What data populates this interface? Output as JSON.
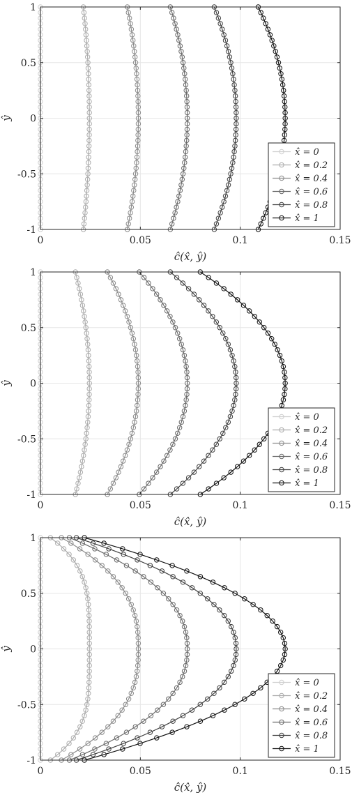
{
  "chart_data": [
    {
      "type": "line",
      "xlabel": "ĉ(x̂, ŷ)",
      "ylabel": "ŷ",
      "xlim": [
        0,
        0.15
      ],
      "ylim": [
        -1,
        1
      ],
      "xticks": [
        "0",
        "0.05",
        "0.1",
        "0.15"
      ],
      "yticks": [
        "-1",
        "-0.5",
        "0",
        "0.5",
        "1"
      ],
      "grid": true,
      "legend_placement": "bottom-right",
      "y": [
        -1,
        -0.95,
        -0.9,
        -0.85,
        -0.8,
        -0.75,
        -0.7,
        -0.65,
        -0.6,
        -0.55,
        -0.5,
        -0.45,
        -0.4,
        -0.35,
        -0.3,
        -0.25,
        -0.2,
        -0.15,
        -0.1,
        -0.05,
        0,
        0.05,
        0.1,
        0.15,
        0.2,
        0.25,
        0.3,
        0.35,
        0.4,
        0.45,
        0.5,
        0.55,
        0.6,
        0.65,
        0.7,
        0.75,
        0.8,
        0.85,
        0.9,
        0.95,
        1
      ],
      "series": [
        {
          "name": "x̂ = 0",
          "color": "#cfcfcf",
          "end": 0,
          "center": 0,
          "exponent": 2
        },
        {
          "name": "x̂ = 0.2",
          "color": "#ababab",
          "end": 0.0215,
          "center": 0.0245,
          "exponent": 2
        },
        {
          "name": "x̂ = 0.4",
          "color": "#8a8a8a",
          "end": 0.0435,
          "center": 0.049,
          "exponent": 2
        },
        {
          "name": "x̂ = 0.6",
          "color": "#696969",
          "end": 0.065,
          "center": 0.0735,
          "exponent": 2
        },
        {
          "name": "x̂ = 0.8",
          "color": "#404040",
          "end": 0.087,
          "center": 0.098,
          "exponent": 2
        },
        {
          "name": "x̂ = 1",
          "color": "#111111",
          "end": 0.109,
          "center": 0.1225,
          "exponent": 2
        }
      ]
    },
    {
      "type": "line",
      "xlabel": "ĉ(x̂, ŷ)",
      "ylabel": "ŷ",
      "xlim": [
        0,
        0.15
      ],
      "ylim": [
        -1,
        1
      ],
      "xticks": [
        "0",
        "0.05",
        "0.1",
        "0.15"
      ],
      "yticks": [
        "-1",
        "-0.5",
        "0",
        "0.5",
        "1"
      ],
      "grid": true,
      "legend_placement": "bottom-right",
      "y": [
        -1,
        -0.95,
        -0.9,
        -0.85,
        -0.8,
        -0.75,
        -0.7,
        -0.65,
        -0.6,
        -0.55,
        -0.5,
        -0.45,
        -0.4,
        -0.35,
        -0.3,
        -0.25,
        -0.2,
        -0.15,
        -0.1,
        -0.05,
        0,
        0.05,
        0.1,
        0.15,
        0.2,
        0.25,
        0.3,
        0.35,
        0.4,
        0.45,
        0.5,
        0.55,
        0.6,
        0.65,
        0.7,
        0.75,
        0.8,
        0.85,
        0.9,
        0.95,
        1
      ],
      "series": [
        {
          "name": "x̂ = 0",
          "color": "#cfcfcf",
          "end": 0,
          "center": 0,
          "exponent": 2
        },
        {
          "name": "x̂ = 0.2",
          "color": "#ababab",
          "end": 0.0175,
          "center": 0.0245,
          "exponent": 2
        },
        {
          "name": "x̂ = 0.4",
          "color": "#8a8a8a",
          "end": 0.0335,
          "center": 0.049,
          "exponent": 2
        },
        {
          "name": "x̂ = 0.6",
          "color": "#696969",
          "end": 0.0495,
          "center": 0.0735,
          "exponent": 2
        },
        {
          "name": "x̂ = 0.8",
          "color": "#404040",
          "end": 0.065,
          "center": 0.098,
          "exponent": 2
        },
        {
          "name": "x̂ = 1",
          "color": "#111111",
          "end": 0.08,
          "center": 0.1225,
          "exponent": 2
        }
      ]
    },
    {
      "type": "line",
      "xlabel": "ĉ(x̂, ŷ)",
      "ylabel": "ŷ",
      "xlim": [
        0,
        0.15
      ],
      "ylim": [
        -1,
        1
      ],
      "xticks": [
        "0",
        "0.05",
        "0.1",
        "0.15"
      ],
      "yticks": [
        "-1",
        "-0.5",
        "0",
        "0.5",
        "1"
      ],
      "grid": true,
      "legend_placement": "bottom-right",
      "y": [
        -1,
        -0.95,
        -0.9,
        -0.85,
        -0.8,
        -0.75,
        -0.7,
        -0.65,
        -0.6,
        -0.55,
        -0.5,
        -0.45,
        -0.4,
        -0.35,
        -0.3,
        -0.25,
        -0.2,
        -0.15,
        -0.1,
        -0.05,
        0,
        0.05,
        0.1,
        0.15,
        0.2,
        0.25,
        0.3,
        0.35,
        0.4,
        0.45,
        0.5,
        0.55,
        0.6,
        0.65,
        0.7,
        0.75,
        0.8,
        0.85,
        0.9,
        0.95,
        1
      ],
      "series": [
        {
          "name": "x̂ = 0",
          "color": "#cfcfcf",
          "end": 0,
          "center": 0,
          "exponent": 4
        },
        {
          "name": "x̂ = 0.2",
          "color": "#ababab",
          "end": 0.005,
          "center": 0.0245,
          "exponent": 4
        },
        {
          "name": "x̂ = 0.4",
          "color": "#8a8a8a",
          "end": 0.0105,
          "center": 0.049,
          "exponent": 2.6
        },
        {
          "name": "x̂ = 0.6",
          "color": "#696969",
          "end": 0.0145,
          "center": 0.0735,
          "exponent": 2.3
        },
        {
          "name": "x̂ = 0.8",
          "color": "#404040",
          "end": 0.018,
          "center": 0.098,
          "exponent": 2.15
        },
        {
          "name": "x̂ = 1",
          "color": "#111111",
          "end": 0.022,
          "center": 0.1225,
          "exponent": 2
        }
      ]
    }
  ]
}
